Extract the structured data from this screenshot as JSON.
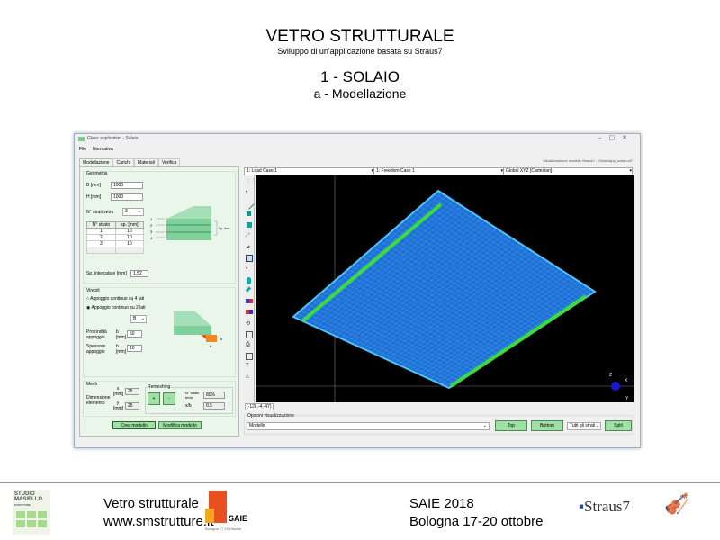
{
  "slide": {
    "title": "VETRO STRUTTURALE",
    "subtitle": "Sviluppo di  un'applicazione basata su Straus7",
    "section": "1 - SOLAIO",
    "subsection": "a - Modellazione"
  },
  "window": {
    "title": "Glass application - Solaio",
    "menu": [
      "File",
      "Normativa"
    ],
    "tabs": [
      "Modellazione",
      "Carichi",
      "Materiali",
      "Verifica"
    ],
    "active_tab": 0,
    "viewer_caption": "Visualizzazione modello Straus7 - \\Glass\\App_solaio.st7"
  },
  "geometria": {
    "label": "Geometria",
    "B_label": "B [mm]",
    "B_value": "1000",
    "H_label": "H [mm]",
    "H_value": "1000",
    "layers_label": "N° strati vetro",
    "layers_value": "3",
    "table_headers": [
      "N° strato",
      "sp. [mm]"
    ],
    "rows": [
      [
        "1",
        "10"
      ],
      [
        "2",
        "10"
      ],
      [
        "3",
        "10"
      ]
    ],
    "interlayer_label": "Sp. intercalare [mm]",
    "interlayer_value": "1.52",
    "diagram_labels": [
      "1",
      "2",
      "3",
      "4"
    ],
    "diagram_sp_label": "Sp. lam."
  },
  "vincoli": {
    "label": "Vincoli",
    "option1": "Appoggio continuo su 4 lati",
    "option2": "Appoggio continuo su 2 lati",
    "selected": 2,
    "side_value": "B",
    "depth_label": "Profondità appoggio",
    "depth_unit": "b [mm]",
    "depth_value": "50",
    "thick_label": "Spessore appoggio",
    "thick_unit": "h [mm]",
    "thick_value": "10",
    "diagram_h": "h",
    "diagram_b": "b"
  },
  "mesh": {
    "label": "Mesh",
    "dim_label": "Dimensione elemento",
    "x_unit": "x [mm]",
    "x_value": "25",
    "y_unit": "y [mm]",
    "y_value": "25",
    "remeshing_label": "Remeshing",
    "plus": "+",
    "minus": "-",
    "total_label": "N° totale brick",
    "total_value": "80%",
    "ratio_label": "x/b",
    "ratio_value": "0.5"
  },
  "buttons": {
    "create": "Crea modello",
    "modify": "Modifica modello"
  },
  "viewer": {
    "load_case": "1: Load Case 1",
    "freedom_case": "1: Freedom Case 1",
    "ucs": "Global XYZ [Cartesian]",
    "coords": "(-12k,-4,-47)",
    "axes": [
      "Z",
      "X",
      "Y"
    ],
    "colors": {
      "plate": "#1f6fd6",
      "mesh": "#4fc3f7",
      "support": "#3ddc3d",
      "background": "#000000"
    }
  },
  "options": {
    "label": "Opzioni visualizzazione",
    "view_value": "Modello",
    "top": "Top",
    "bottom": "Bottom",
    "layers_value": "Tutti gli strati",
    "split": "Split"
  },
  "footer": {
    "logo_text": "STUDIO MASIELLO STRUTTURE",
    "title": "Vetro strutturale",
    "url": "www.smstrutture.it",
    "saie_logo": "SAIE",
    "saie_logo_sub": "Bologna 17 20 Ottobre",
    "event": "SAIE 2018",
    "event_place": "Bologna 17-20 ottobre",
    "straus_logo": "Straus7"
  }
}
